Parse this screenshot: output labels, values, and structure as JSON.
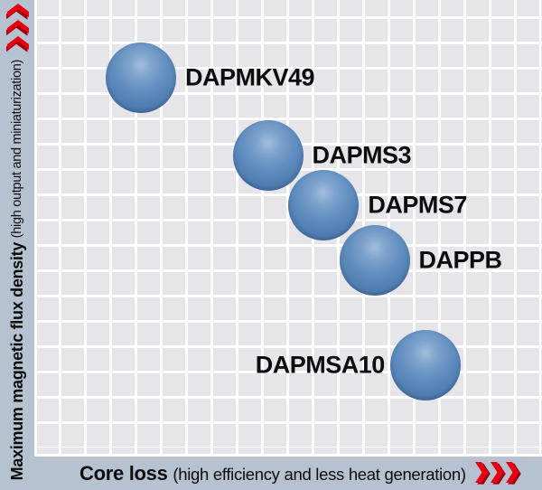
{
  "colors": {
    "background_bar": "#b6c2cf",
    "grid_cell": "#e6e6ea",
    "grid_line": "#ffffff",
    "bubble_blue": "#5583b6",
    "accent_red": "#e60012",
    "accent_red_dark": "#9c000c",
    "text": "#0d0d0d"
  },
  "axes": {
    "y": {
      "main": "Maximum magnetic flux density ",
      "paren": "(high output and miniaturization)"
    },
    "x": {
      "main": "Core loss ",
      "paren": "(high efficiency and less heat generation)"
    }
  },
  "chart_data": {
    "type": "scatter",
    "xlabel": "Core loss (high efficiency and less heat generation)",
    "ylabel": "Maximum magnetic flux density (high output and miniaturization)",
    "axis_ranges": {
      "x": [
        0,
        100
      ],
      "y": [
        0,
        100
      ]
    },
    "grid": true,
    "legend": false,
    "points": [
      {
        "label": "DAPMKV49",
        "x": 21,
        "y": 83,
        "label_side": "right"
      },
      {
        "label": "DAPMS3",
        "x": 46,
        "y": 66,
        "label_side": "right"
      },
      {
        "label": "DAPMS7",
        "x": 57,
        "y": 55,
        "label_side": "right"
      },
      {
        "label": "DAPPB",
        "x": 67,
        "y": 43,
        "label_side": "right"
      },
      {
        "label": "DAPMSA10",
        "x": 77,
        "y": 20,
        "label_side": "left"
      }
    ]
  }
}
